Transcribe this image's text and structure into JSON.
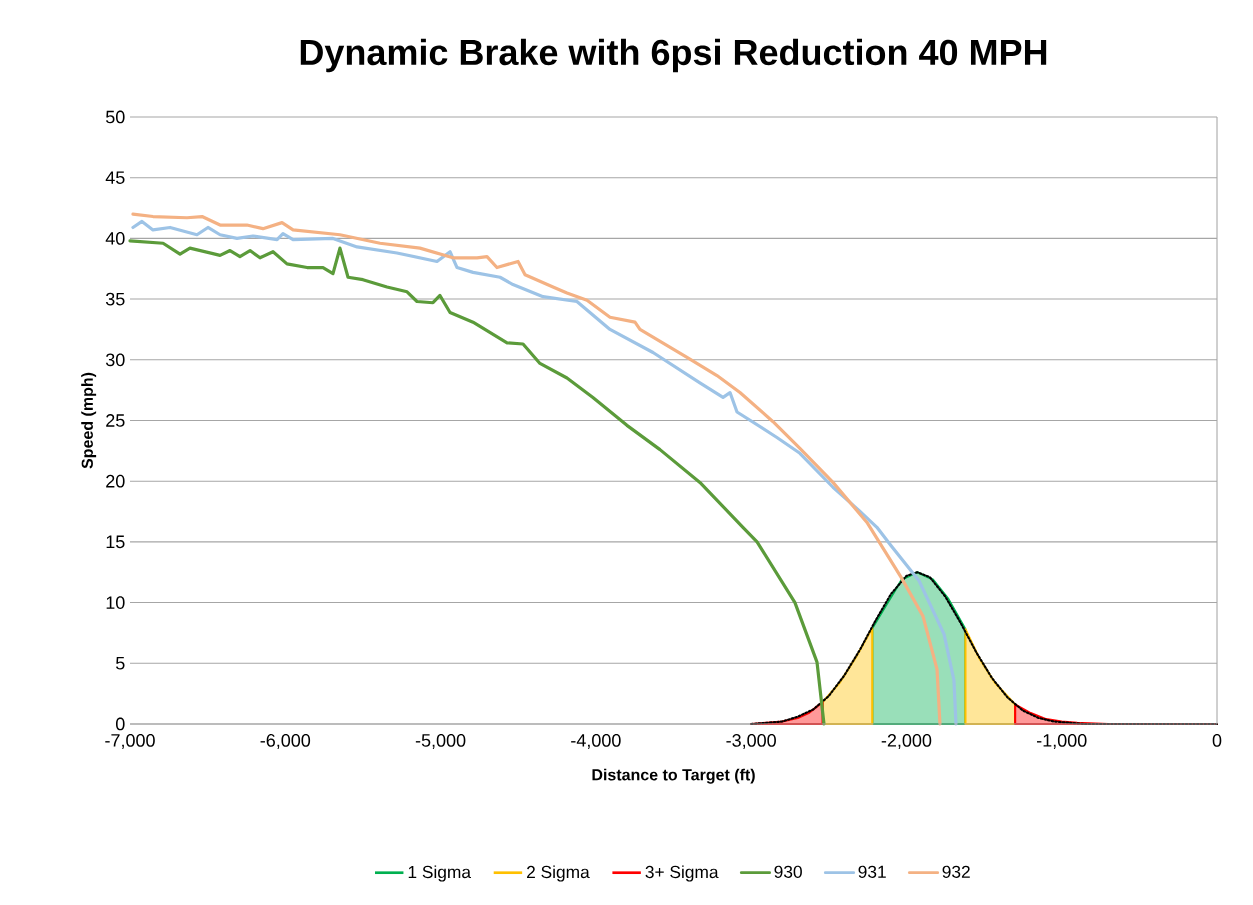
{
  "chart_data": {
    "type": "line",
    "title": "Dynamic Brake with 6psi Reduction 40 MPH",
    "xlabel": "Distance to Target (ft)",
    "ylabel": "Speed (mph)",
    "xlim": [
      -7000,
      0
    ],
    "ylim": [
      0,
      50
    ],
    "xticks": [
      {
        "value": -7000,
        "label": "-7,000"
      },
      {
        "value": -6000,
        "label": "-6,000"
      },
      {
        "value": -5000,
        "label": "-5,000"
      },
      {
        "value": -4000,
        "label": "-4,000"
      },
      {
        "value": -3000,
        "label": "-3,000"
      },
      {
        "value": -2000,
        "label": "-2,000"
      },
      {
        "value": -1000,
        "label": "-1,000"
      },
      0
    ],
    "yticks": [
      0,
      5,
      10,
      15,
      20,
      25,
      30,
      35,
      40,
      45,
      50
    ],
    "grid": "y",
    "legend": "bottom",
    "marker": "none",
    "series": [
      {
        "name": "1 Sigma",
        "type": "area",
        "color": "#00b050",
        "x": [
          -2220,
          -2130,
          -2030,
          -1930,
          -1830,
          -1730,
          -1620
        ],
        "values": [
          7.9,
          9.8,
          11.9,
          12.5,
          11.9,
          10.3,
          7.8
        ]
      },
      {
        "name": "2 Sigma",
        "type": "area",
        "color": "#ffc000",
        "x": [
          -2540,
          -2430,
          -2330,
          -2220,
          -1930,
          -1620,
          -1530,
          -1430,
          -1300
        ],
        "values": [
          1.8,
          3.4,
          5.4,
          7.9,
          null,
          7.8,
          5.4,
          3.4,
          1.6
        ]
      },
      {
        "name": "3+ Sigma",
        "type": "area",
        "color": "#ff0000",
        "x": [
          -3000,
          -2900,
          -2800,
          -2700,
          -2630,
          -2540,
          -1930,
          -1300,
          -1200,
          -1100,
          -1000,
          -900,
          -700,
          -500,
          0
        ],
        "values": [
          0,
          0.1,
          0.2,
          0.5,
          0.9,
          1.8,
          null,
          1.6,
          0.9,
          0.4,
          0.2,
          0.1,
          0,
          0,
          0
        ]
      },
      {
        "color": "#000000",
        "line_style": "dotted",
        "x": [
          -3000,
          -2900,
          -2800,
          -2700,
          -2600,
          -2500,
          -2400,
          -2300,
          -2200,
          -2100,
          -2000,
          -1930,
          -1850,
          -1750,
          -1650,
          -1550,
          -1450,
          -1350,
          -1250,
          -1150,
          -1050,
          -950,
          -850,
          -700,
          -500,
          -250,
          0
        ],
        "values": [
          0,
          0.1,
          0.2,
          0.6,
          1.2,
          2.3,
          4.0,
          6.1,
          8.5,
          10.7,
          12.2,
          12.5,
          12.1,
          10.5,
          8.3,
          5.9,
          3.8,
          2.2,
          1.1,
          0.5,
          0.2,
          0.1,
          0,
          0,
          0,
          0,
          0
        ]
      },
      {
        "name": "930",
        "color": "#5b9b3a",
        "x": [
          -7000,
          -6787,
          -6678,
          -6614,
          -6420,
          -6356,
          -6292,
          -6227,
          -6163,
          -6079,
          -5989,
          -5860,
          -5757,
          -5693,
          -5648,
          -5596,
          -5500,
          -5345,
          -5216,
          -5152,
          -5049,
          -5004,
          -4939,
          -4791,
          -4572,
          -4469,
          -4360,
          -4186,
          -4019,
          -3800,
          -3587,
          -3330,
          -3053,
          -2962,
          -2718,
          -2576,
          -2531
        ],
        "values": [
          39.8,
          39.6,
          38.7,
          39.2,
          38.6,
          39.0,
          38.5,
          39.0,
          38.4,
          38.9,
          37.9,
          37.6,
          37.6,
          37.1,
          39.2,
          36.8,
          36.6,
          36.0,
          35.6,
          34.8,
          34.7,
          35.3,
          33.9,
          33.1,
          31.4,
          31.3,
          29.7,
          28.5,
          26.9,
          24.6,
          22.6,
          19.9,
          16.2,
          15.0,
          10.0,
          5.1,
          0
        ]
      },
      {
        "name": "931",
        "color": "#9dc3e6",
        "x": [
          -6981,
          -6923,
          -6852,
          -6742,
          -6569,
          -6498,
          -6420,
          -6311,
          -6208,
          -6053,
          -6015,
          -5950,
          -5693,
          -5538,
          -5281,
          -5023,
          -4939,
          -4894,
          -4791,
          -4617,
          -4534,
          -4340,
          -4122,
          -3909,
          -3632,
          -3330,
          -3181,
          -3136,
          -3091,
          -2834,
          -2686,
          -2473,
          -2306,
          -2190,
          -2100,
          -1919,
          -1758,
          -1694,
          -1681
        ],
        "values": [
          40.9,
          41.4,
          40.7,
          40.9,
          40.3,
          40.9,
          40.3,
          40.0,
          40.2,
          39.9,
          40.4,
          39.9,
          40.0,
          39.3,
          38.8,
          38.1,
          38.9,
          37.6,
          37.2,
          36.8,
          36.2,
          35.2,
          34.8,
          32.5,
          30.6,
          28.1,
          26.9,
          27.3,
          25.7,
          23.6,
          22.3,
          19.5,
          17.6,
          16.2,
          14.7,
          11.8,
          7.4,
          3.6,
          0
        ]
      },
      {
        "name": "932",
        "color": "#f4b183",
        "x": [
          -6981,
          -6852,
          -6633,
          -6536,
          -6420,
          -6247,
          -6144,
          -6021,
          -5950,
          -5648,
          -5390,
          -5133,
          -4920,
          -4765,
          -4701,
          -4637,
          -4501,
          -4456,
          -4276,
          -4186,
          -4057,
          -3909,
          -3748,
          -3716,
          -3413,
          -3220,
          -3072,
          -2859,
          -2686,
          -2473,
          -2254,
          -2035,
          -1894,
          -1803,
          -1784
        ],
        "values": [
          42.0,
          41.8,
          41.7,
          41.8,
          41.1,
          41.1,
          40.8,
          41.3,
          40.7,
          40.3,
          39.6,
          39.2,
          38.4,
          38.4,
          38.5,
          37.6,
          38.1,
          37.0,
          36.0,
          35.5,
          34.9,
          33.5,
          33.1,
          32.5,
          30.2,
          28.7,
          27.3,
          24.9,
          22.7,
          19.9,
          16.6,
          12.1,
          8.9,
          4.5,
          0
        ]
      }
    ]
  }
}
